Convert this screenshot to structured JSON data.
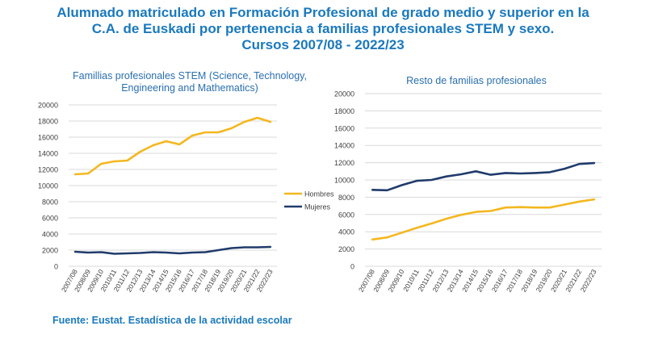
{
  "title_lines": [
    "Alumnado matriculado en Formación Profesional de grado medio y superior en la",
    "C.A. de Euskadi por pertenencia a familias profesionales STEM y sexo.",
    "Cursos 2007/08 - 2022/23"
  ],
  "source": "Fuente: Eustat. Estadística de la actividad escolar",
  "colors": {
    "hombres": "#f4b71f",
    "mujeres": "#203b6b",
    "title": "#1a79bd",
    "grid": "#d9d9d9"
  },
  "chart_data": [
    {
      "type": "line",
      "title_lines": [
        "Famillias profesionales STEM (Science, Technology,",
        "Engineering and Mathematics)"
      ],
      "categories": [
        "2007/08",
        "2008/09",
        "2009/10",
        "2010/11",
        "2011/12",
        "2012/13",
        "2013/14",
        "2014/15",
        "2015/16",
        "2016/17",
        "2017/18",
        "2018/19",
        "2019/20",
        "2020/21",
        "2021/22",
        "2022/23"
      ],
      "y_ticks": [
        "0",
        "2000",
        "4000",
        "6000",
        "8000",
        "10000",
        "12000",
        "14000",
        "16000",
        "18000",
        "20000"
      ],
      "ylim": [
        0,
        20000
      ],
      "series": [
        {
          "name": "Hombres",
          "values": [
            11400,
            11500,
            12700,
            13000,
            13100,
            14200,
            15000,
            15500,
            15100,
            16200,
            16600,
            16600,
            17100,
            17900,
            18400,
            17900
          ]
        },
        {
          "name": "Mujeres",
          "values": [
            1800,
            1700,
            1750,
            1550,
            1600,
            1650,
            1750,
            1700,
            1600,
            1700,
            1750,
            2000,
            2250,
            2350,
            2350,
            2400
          ]
        }
      ],
      "legend": {
        "position": "right",
        "entries": [
          "Hombres",
          "Mujeres"
        ]
      }
    },
    {
      "type": "line",
      "title_lines": [
        "Resto de familias profesionales"
      ],
      "categories": [
        "2007/08",
        "2008/09",
        "2009/10",
        "2010/11",
        "2011/12",
        "2012/13",
        "2013/14",
        "2014/15",
        "2015/16",
        "2016/17",
        "2017/18",
        "2018/19",
        "2019/20",
        "2020/21",
        "2021/22",
        "2022/23"
      ],
      "y_ticks": [
        "0",
        "2000",
        "4000",
        "6000",
        "8000",
        "10000",
        "12000",
        "14000",
        "16000",
        "18000",
        "20000"
      ],
      "ylim": [
        0,
        20000
      ],
      "series": [
        {
          "name": "Hombres",
          "values": [
            3100,
            3350,
            3900,
            4450,
            4950,
            5500,
            5950,
            6300,
            6400,
            6800,
            6850,
            6800,
            6800,
            7150,
            7500,
            7750
          ]
        },
        {
          "name": "Mujeres",
          "values": [
            8850,
            8800,
            9400,
            9900,
            10000,
            10400,
            10650,
            11000,
            10600,
            10800,
            10750,
            10800,
            10900,
            11300,
            11850,
            11950
          ]
        }
      ]
    }
  ]
}
